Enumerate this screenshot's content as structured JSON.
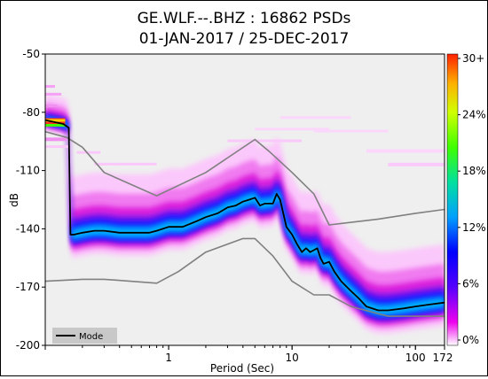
{
  "chart_data": {
    "type": "heatmap",
    "title_line1": "GE.WLF.--.BHZ : 16862 PSDs",
    "title_line2": "01-JAN-2017 / 25-DEC-2017",
    "xlabel": "Period (Sec)",
    "ylabel": "dB",
    "x_scale": "log",
    "xlim": [
      0.1,
      172
    ],
    "ylim": [
      -200,
      -50
    ],
    "x_ticks": [
      {
        "value": 1,
        "label": "1"
      },
      {
        "value": 10,
        "label": "10"
      },
      {
        "value": 100,
        "label": "100"
      },
      {
        "value": 172,
        "label": "172"
      }
    ],
    "y_ticks": [
      {
        "value": -50,
        "label": "-50"
      },
      {
        "value": -80,
        "label": "-80"
      },
      {
        "value": -110,
        "label": "-110"
      },
      {
        "value": -140,
        "label": "-140"
      },
      {
        "value": -170,
        "label": "-170"
      },
      {
        "value": -200,
        "label": "-200"
      }
    ],
    "colorbar": {
      "ticks": [
        "0%",
        "6%",
        "12%",
        "18%",
        "24%",
        "30+"
      ],
      "colors": [
        "#ffffff",
        "#ee00ee",
        "#5500ff",
        "#0000ff",
        "#00a0ff",
        "#00e0a0",
        "#40ff00",
        "#d0ff00",
        "#ffb000",
        "#ff2000"
      ]
    },
    "legend": {
      "entries": [
        "Mode"
      ],
      "placement": "bottom-left"
    },
    "mode_series": {
      "name": "Mode",
      "x": [
        0.1,
        0.14,
        0.155,
        0.16,
        0.17,
        0.2,
        0.25,
        0.3,
        0.4,
        0.5,
        0.6,
        0.7,
        0.8,
        1.0,
        1.3,
        1.7,
        2.0,
        2.5,
        3.0,
        3.5,
        4.0,
        4.5,
        5.0,
        5.5,
        6.0,
        7.0,
        7.5,
        8.0,
        9.0,
        10.0,
        11.0,
        12.0,
        13.0,
        14.0,
        15.0,
        16.0,
        17.0,
        18.0,
        20.0,
        22.0,
        25.0,
        30.0,
        35.0,
        40.0,
        50.0,
        60.0,
        80.0,
        100.0,
        130.0,
        172.0
      ],
      "y": [
        -84,
        -86,
        -88,
        -143,
        -143,
        -142,
        -141,
        -141,
        -142,
        -142,
        -142,
        -142,
        -141,
        -139,
        -139,
        -136,
        -134,
        -132,
        -129,
        -128,
        -126,
        -125,
        -124,
        -128,
        -127,
        -127,
        -122,
        -125,
        -139,
        -143,
        -148,
        -152,
        -150,
        -152,
        -151,
        -150,
        -155,
        -158,
        -157,
        -162,
        -167,
        -172,
        -176,
        -180,
        -182,
        -182,
        -181,
        -180,
        -179,
        -178
      ]
    },
    "envelope_high": {
      "x": [
        0.1,
        0.15,
        0.2,
        0.3,
        0.8,
        2.0,
        5.0,
        6.5,
        10.0,
        15.0,
        20.0,
        50.0,
        100.0,
        172.0
      ],
      "y": [
        -90,
        -93,
        -98,
        -111,
        -123,
        -111,
        -94,
        -100,
        -111,
        -122,
        -138,
        -135,
        -132,
        -130
      ]
    },
    "envelope_low": {
      "x": [
        0.1,
        0.2,
        0.3,
        0.8,
        1.2,
        2.0,
        4.0,
        5.0,
        7.0,
        10.0,
        15.0,
        20.0,
        30.0,
        60.0,
        172.0
      ],
      "y": [
        -167,
        -166,
        -166,
        -168,
        -162,
        -152,
        -145,
        -145,
        -154,
        -167,
        -174,
        -174,
        -180,
        -185,
        -185
      ]
    }
  }
}
